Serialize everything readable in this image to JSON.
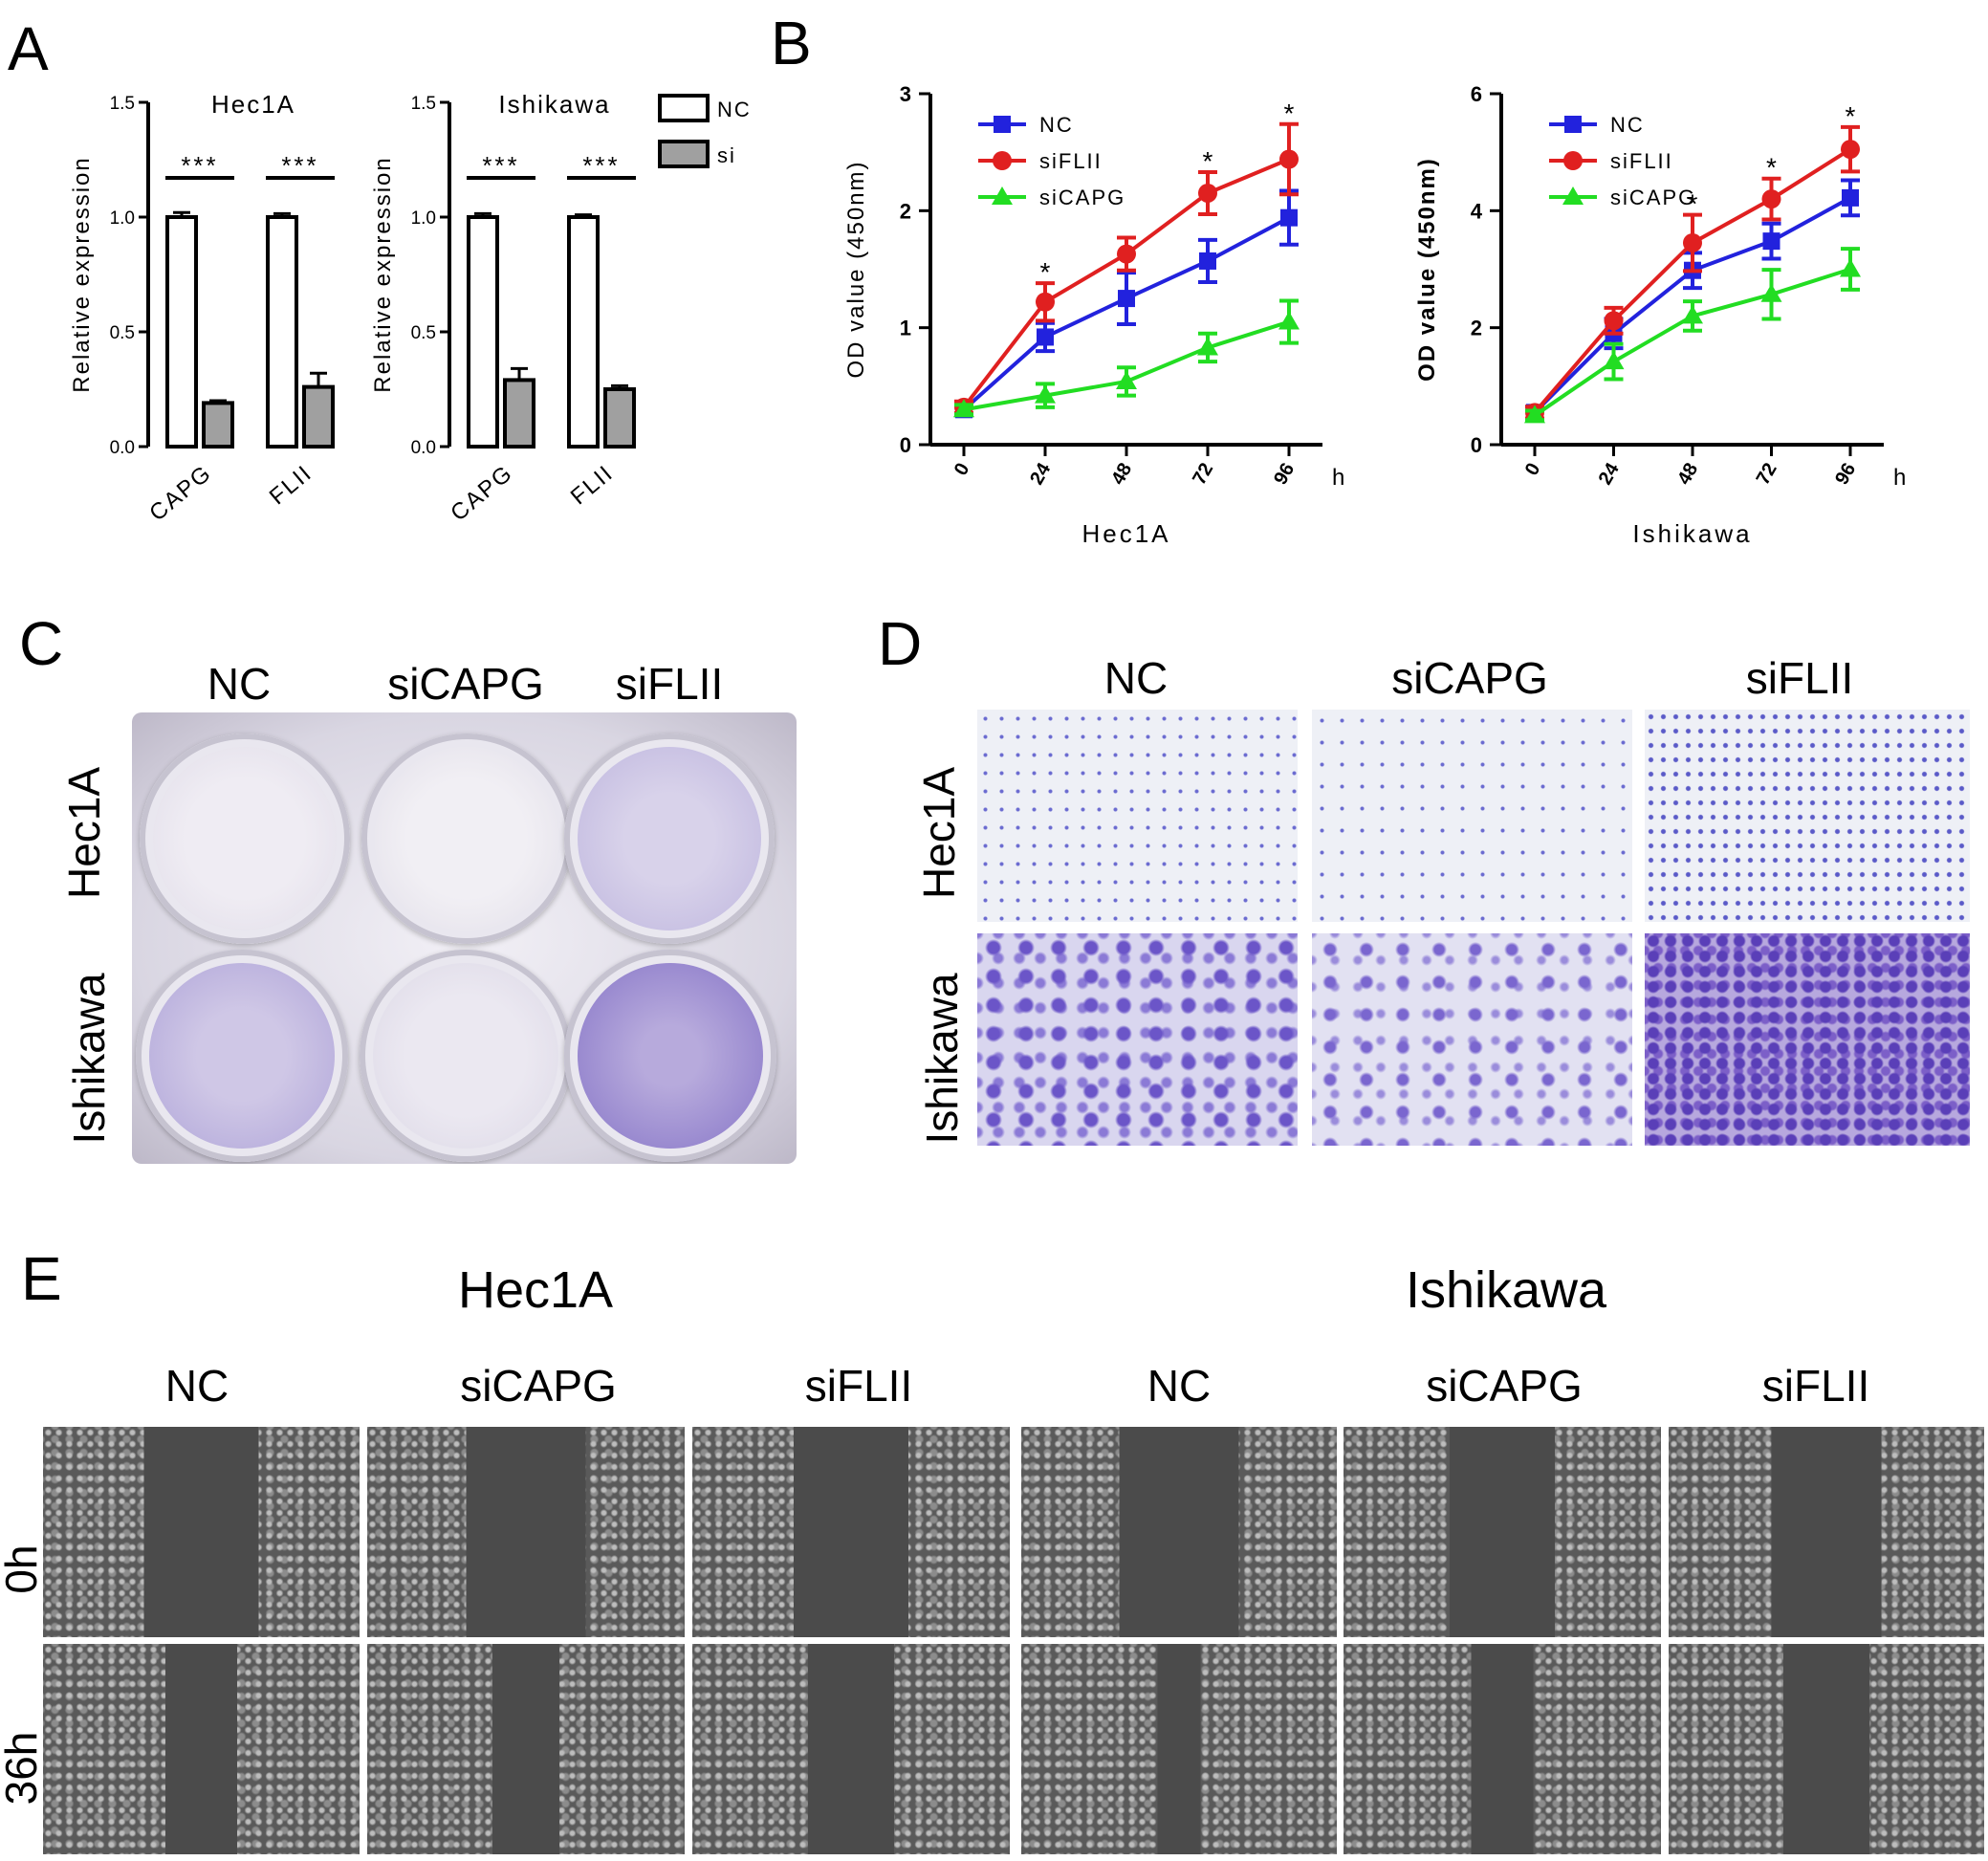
{
  "panels": {
    "A": "A",
    "B": "B",
    "C": "C",
    "D": "D",
    "E": "E"
  },
  "panelA": {
    "ylabel": "Relative expression",
    "yticks": [
      "0.0",
      "0.5",
      "1.0",
      "1.5"
    ],
    "legend": [
      {
        "label": "NC",
        "color": "#ffffff"
      },
      {
        "label": "si",
        "color": "#a0a0a0"
      }
    ],
    "charts": [
      {
        "title": "Hec1A",
        "categories": [
          "CAPG",
          "FLII"
        ],
        "nc": [
          1.0,
          1.0
        ],
        "nc_err": [
          0.02,
          0.015
        ],
        "si": [
          0.19,
          0.26
        ],
        "si_err": [
          0.01,
          0.06
        ],
        "sig": [
          "***",
          "***"
        ]
      },
      {
        "title": "Ishikawa",
        "categories": [
          "CAPG",
          "FLII"
        ],
        "nc": [
          1.0,
          1.0
        ],
        "nc_err": [
          0.015,
          0.01
        ],
        "si": [
          0.29,
          0.25
        ],
        "si_err": [
          0.05,
          0.015
        ],
        "sig": [
          "***",
          "***"
        ]
      }
    ]
  },
  "panelB": {
    "ylabel": "OD value (450nm)",
    "x_unit": "h",
    "legend": [
      {
        "label": "NC",
        "color": "#2222dd",
        "marker": "square"
      },
      {
        "label": "siFLII",
        "color": "#e02020",
        "marker": "circle"
      },
      {
        "label": "siCAPG",
        "color": "#22dd22",
        "marker": "triangle"
      }
    ]
  },
  "chart_data": [
    {
      "type": "bar",
      "title": "Hec1A",
      "categories": [
        "CAPG",
        "FLII"
      ],
      "ylabel": "Relative expression",
      "ylim": [
        0,
        1.5
      ],
      "series": [
        {
          "name": "NC",
          "values": [
            1.0,
            1.0
          ]
        },
        {
          "name": "si",
          "values": [
            0.19,
            0.26
          ]
        }
      ]
    },
    {
      "type": "bar",
      "title": "Ishikawa",
      "categories": [
        "CAPG",
        "FLII"
      ],
      "ylabel": "Relative expression",
      "ylim": [
        0,
        1.5
      ],
      "series": [
        {
          "name": "NC",
          "values": [
            1.0,
            1.0
          ]
        },
        {
          "name": "si",
          "values": [
            0.29,
            0.25
          ]
        }
      ]
    },
    {
      "type": "line",
      "xlabel": "Hec1A",
      "ylabel": "OD value (450nm)",
      "x": [
        0,
        24,
        48,
        72,
        96
      ],
      "ylim": [
        0,
        3
      ],
      "yticks": [
        0,
        1,
        2,
        3
      ],
      "star_x": [
        24,
        72,
        96
      ],
      "series": [
        {
          "name": "NC",
          "color": "#2222dd",
          "values": [
            0.3,
            0.92,
            1.25,
            1.57,
            1.94
          ],
          "err": [
            0.05,
            0.12,
            0.22,
            0.18,
            0.23
          ]
        },
        {
          "name": "siFLII",
          "color": "#e02020",
          "values": [
            0.32,
            1.22,
            1.63,
            2.15,
            2.44
          ],
          "err": [
            0.05,
            0.16,
            0.14,
            0.18,
            0.3
          ]
        },
        {
          "name": "siCAPG",
          "color": "#22dd22",
          "values": [
            0.3,
            0.42,
            0.54,
            0.83,
            1.05
          ],
          "err": [
            0.04,
            0.1,
            0.12,
            0.12,
            0.18
          ]
        }
      ]
    },
    {
      "type": "line",
      "xlabel": "Ishikawa",
      "ylabel": "OD value (450nm)",
      "x": [
        0,
        24,
        48,
        72,
        96
      ],
      "ylim": [
        0,
        6
      ],
      "yticks": [
        0,
        2,
        4,
        6
      ],
      "star_x": [
        48,
        72,
        96
      ],
      "series": [
        {
          "name": "NC",
          "color": "#2222dd",
          "values": [
            0.55,
            1.9,
            2.98,
            3.48,
            4.22
          ],
          "err": [
            0.1,
            0.25,
            0.3,
            0.3,
            0.3
          ]
        },
        {
          "name": "siFLII",
          "color": "#e02020",
          "values": [
            0.55,
            2.12,
            3.45,
            4.2,
            5.05
          ],
          "err": [
            0.1,
            0.22,
            0.48,
            0.35,
            0.38
          ]
        },
        {
          "name": "siCAPG",
          "color": "#22dd22",
          "values": [
            0.5,
            1.42,
            2.2,
            2.57,
            3.0
          ],
          "err": [
            0.08,
            0.3,
            0.25,
            0.42,
            0.35
          ]
        }
      ]
    }
  ],
  "panelC": {
    "columns": [
      "NC",
      "siCAPG",
      "siFLII"
    ],
    "rows": [
      "Hec1A",
      "Ishikawa"
    ]
  },
  "panelD": {
    "columns": [
      "NC",
      "siCAPG",
      "siFLII"
    ],
    "rows": [
      "Hec1A",
      "Ishikawa"
    ]
  },
  "panelE": {
    "groups": [
      "Hec1A",
      "Ishikawa"
    ],
    "columns": [
      "NC",
      "siCAPG",
      "siFLII",
      "NC",
      "siCAPG",
      "siFLII"
    ],
    "rows": [
      "0h",
      "36h"
    ]
  },
  "colors": {
    "nc_bar": "#ffffff",
    "si_bar": "#a0a0a0",
    "stain": "#5a3fb8",
    "wound": "#4a4a4a"
  }
}
